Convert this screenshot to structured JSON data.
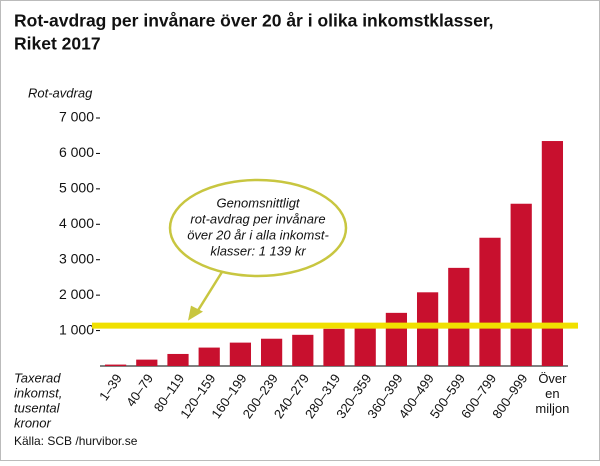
{
  "chart_data": {
    "type": "bar",
    "title": [
      "Rot-avdrag per invånare över 20 år i olika inkomstklasser,",
      "Riket 2017"
    ],
    "y_label": "Rot-avdrag",
    "x_label": [
      "Taxerad",
      "inkomst,",
      "tusental",
      "kronor"
    ],
    "categories": [
      "1–39",
      "40–79",
      "80–119",
      "120–159",
      "160–199",
      "200–239",
      "240–279",
      "280–319",
      "320–359",
      "360–399",
      "400–499",
      "500–599",
      "600–799",
      "800–999",
      "Över en miljon"
    ],
    "values": [
      40,
      180,
      340,
      520,
      660,
      770,
      880,
      1050,
      1150,
      1500,
      2080,
      2770,
      3620,
      4580,
      6350
    ],
    "color": "#c8102e",
    "ylim": [
      0,
      7000
    ],
    "yticks": [
      {
        "value": 1000,
        "label": "1 000"
      },
      {
        "value": 2000,
        "label": "2 000"
      },
      {
        "value": 3000,
        "label": "3 000"
      },
      {
        "value": 4000,
        "label": "4 000"
      },
      {
        "value": 5000,
        "label": "5 000"
      },
      {
        "value": 6000,
        "label": "6 000"
      },
      {
        "value": 7000,
        "label": "7 000"
      }
    ],
    "reference_line": {
      "value": 1139,
      "color": "#f0e000"
    },
    "annotation": [
      "Genomsnittligt",
      "rot-avdrag per invånare",
      "över 20 år i alla inkomst-",
      "klasser: 1 139 kr"
    ],
    "source": "Källa: SCB /hurvibor.se"
  }
}
